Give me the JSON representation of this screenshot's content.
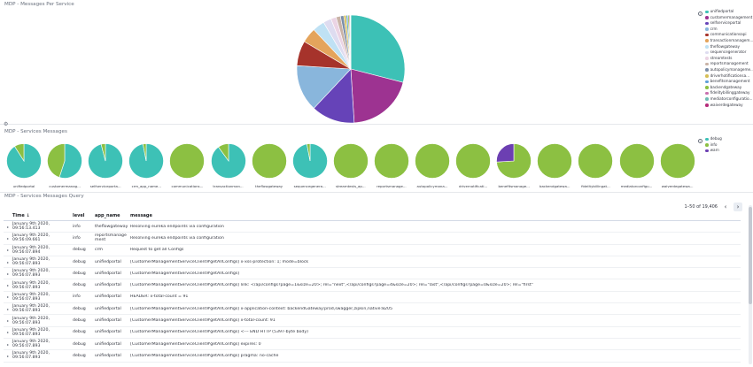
{
  "colors": {
    "c1": "#3dc1b6",
    "c2": "#9d3391",
    "c3": "#6643b8",
    "c4": "#89b6dc",
    "c5": "#a6332b",
    "c6": "#e4a45c",
    "c7": "#bfe1f4",
    "c8": "#dedcf0",
    "c9": "#ebd4e4",
    "c10": "#c9b3a6",
    "green": "#8cc042",
    "purple": "#6c3fb2"
  },
  "pie_panel": {
    "title": "MDP - Messages Per Service",
    "legend_toggle": "‹",
    "chart_data": {
      "type": "pie",
      "labels": [
        "unifiedportal",
        "customermanagement",
        "selfserviceportal",
        "crm",
        "communicationsapi",
        "transactionmanagem...",
        "theflowgateway",
        "sequencegenerator",
        "streamtests",
        "reportsmanagement",
        "autopolicymanageme...",
        "driverhotificationsa...",
        "benefitsmanagement",
        "backendgateway",
        "fidelitybillinggateway",
        "mediatorconfiguratio...",
        "waiverdegateway"
      ],
      "values": [
        29.0,
        20.0,
        13.0,
        14.0,
        7.5,
        4.5,
        3.6,
        2.4,
        1.6,
        1.3,
        1.0,
        0.7,
        0.5,
        0.4,
        0.3,
        0.1,
        0.1
      ],
      "colors": [
        "#3dc1b6",
        "#9d3391",
        "#6643b8",
        "#89b6dc",
        "#a6332b",
        "#e4a45c",
        "#bfe1f4",
        "#dedcf0",
        "#ebd4e4",
        "#c9b3a6",
        "#7c8fa9",
        "#d6bf57",
        "#5e9fd8",
        "#8cc042",
        "#c96fae",
        "#6fbcb5",
        "#b52c7a"
      ],
      "legend": "right"
    }
  },
  "mini_panel": {
    "title": "MDP - Services Messages",
    "settings_icon": "⚙",
    "legend_toggle": "‹",
    "legend": [
      {
        "label": "debug",
        "color": "#3dc1b6"
      },
      {
        "label": "info",
        "color": "#8cc042"
      },
      {
        "label": "warn",
        "color": "#6c3fb2"
      }
    ],
    "chart_data": {
      "type": "pie",
      "categories": [
        "debug",
        "info",
        "warn"
      ],
      "pies": [
        {
          "name": "unifiedportal",
          "values": [
            91,
            9,
            0
          ]
        },
        {
          "name": "customermanag...",
          "values": [
            55,
            45,
            0
          ]
        },
        {
          "name": "selfserviceporta...",
          "values": [
            96,
            4,
            0
          ]
        },
        {
          "name": "crm_app_name...",
          "values": [
            97,
            3,
            0
          ]
        },
        {
          "name": "communications...",
          "values": [
            0,
            100,
            0
          ]
        },
        {
          "name": "transactionman...",
          "values": [
            90,
            10,
            0
          ]
        },
        {
          "name": "theflowgateway",
          "values": [
            0,
            100,
            0
          ]
        },
        {
          "name": "sequencegenera...",
          "values": [
            97,
            3,
            0
          ]
        },
        {
          "name": "streamtests_ap...",
          "values": [
            0,
            100,
            0
          ]
        },
        {
          "name": "reportsmanage...",
          "values": [
            0,
            100,
            0
          ]
        },
        {
          "name": "autopolicymana...",
          "values": [
            0,
            100,
            0
          ]
        },
        {
          "name": "drivernotificati...",
          "values": [
            0,
            100,
            0
          ]
        },
        {
          "name": "benefitsmanage...",
          "values": [
            0,
            74,
            26
          ]
        },
        {
          "name": "backendgatewa...",
          "values": [
            0,
            100,
            0
          ]
        },
        {
          "name": "fidelitybillingat...",
          "values": [
            0,
            100,
            0
          ]
        },
        {
          "name": "mediatorconfigu...",
          "values": [
            0,
            100,
            0
          ]
        },
        {
          "name": "waiverdegatewa...",
          "values": [
            0,
            100,
            0
          ]
        }
      ]
    }
  },
  "table_panel": {
    "title": "MDP - Services Messages Query",
    "pager_text": "1–50 of 19,406",
    "prev_icon": "‹",
    "next_icon": "›",
    "expand_icon": "▸",
    "columns": [
      "Time ↓",
      "level",
      "app_name",
      "message"
    ],
    "rows": [
      {
        "time": "January 9th 2020, 09:56:13.413",
        "level": "info",
        "app": "theflowgateway",
        "message": "Resolving eureka endpoints via configuration"
      },
      {
        "time": "January 9th 2020, 09:56:09.661",
        "level": "info",
        "app": "reportsmanage\nment",
        "message": "Resolving eureka endpoints via configuration"
      },
      {
        "time": "January 9th 2020, 09:56:07.894",
        "level": "debug",
        "app": "crm",
        "message": "Request to get all Configs"
      },
      {
        "time": "January 9th 2020, 09:56:07.893",
        "level": "debug",
        "app": "unifiedportal",
        "message": "[CustomerManagementServiceClient#getAllConfigs] x-xss-protection: 1; mode=block"
      },
      {
        "time": "January 9th 2020, 09:56:07.893",
        "level": "debug",
        "app": "unifiedportal",
        "message": "[CustomerManagementServiceClient#getAllConfigs]"
      },
      {
        "time": "January 9th 2020, 09:56:07.893",
        "level": "debug",
        "app": "unifiedportal",
        "message": "[CustomerManagementServiceClient#getAllConfigs] link: </api/configs?page=1&size=20>; rel=\"next\",</api/configs?page=4&size=20>; rel=\"last\",</api/configs?page=0&size=20>; rel=\"first\""
      },
      {
        "time": "January 9th 2020, 09:56:07.893",
        "level": "info",
        "app": "unifiedportal",
        "message": "HEADER: x-total-count = 91"
      },
      {
        "time": "January 9th 2020, 09:56:07.893",
        "level": "debug",
        "app": "unifiedportal",
        "message": "[CustomerManagementServiceClient#getAllConfigs] x-application-context: backendGateway:prod,swagger,zipkin,native:8205"
      },
      {
        "time": "January 9th 2020, 09:56:07.893",
        "level": "debug",
        "app": "unifiedportal",
        "message": "[CustomerManagementServiceClient#getAllConfigs] x-total-count: 91"
      },
      {
        "time": "January 9th 2020, 09:56:07.893",
        "level": "debug",
        "app": "unifiedportal",
        "message": "[CustomerManagementServiceClient#getAllConfigs] <--- END HTTP (5397-byte body)"
      },
      {
        "time": "January 9th 2020, 09:56:07.893",
        "level": "debug",
        "app": "unifiedportal",
        "message": "[CustomerManagementServiceClient#getAllConfigs] expires: 0"
      },
      {
        "time": "January 9th 2020, 09:56:07.893",
        "level": "debug",
        "app": "unifiedportal",
        "message": "[CustomerManagementServiceClient#getAllConfigs] pragma: no-cache"
      }
    ]
  }
}
